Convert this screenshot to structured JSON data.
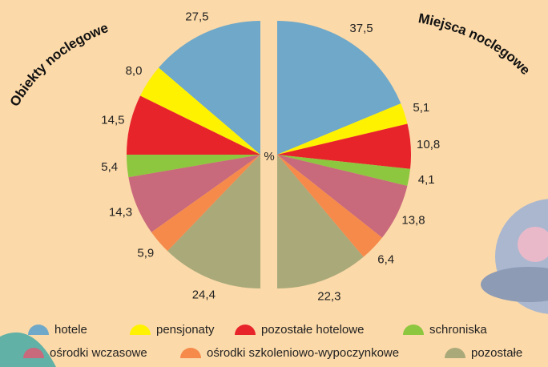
{
  "chart_data": {
    "type": "pie",
    "center_label": "%",
    "categories": [
      "hotele",
      "pensjonaty",
      "pozostałe hotelowe",
      "schroniska",
      "ośrodki wczasowe",
      "ośrodki szkoleniowo-wypoczynkowe",
      "pozostałe"
    ],
    "colors": [
      "#6fa8c8",
      "#fff200",
      "#e8242b",
      "#8dc63f",
      "#c8697c",
      "#f58a4b",
      "#a9a97a"
    ],
    "series": [
      {
        "name": "Obiekty noclegowe",
        "values": [
          27.5,
          8.0,
          14.5,
          5.4,
          14.3,
          5.9,
          24.4
        ],
        "value_labels": [
          "27,5",
          "8,0",
          "14,5",
          "5,4",
          "14,3",
          "5,9",
          "24,4"
        ]
      },
      {
        "name": "Miejsca noclegowe",
        "values": [
          37.5,
          5.1,
          10.8,
          4.1,
          13.8,
          6.4,
          22.3
        ],
        "value_labels": [
          "37,5",
          "5,1",
          "10,8",
          "4,1",
          "13,8",
          "6,4",
          "22,3"
        ]
      }
    ]
  }
}
